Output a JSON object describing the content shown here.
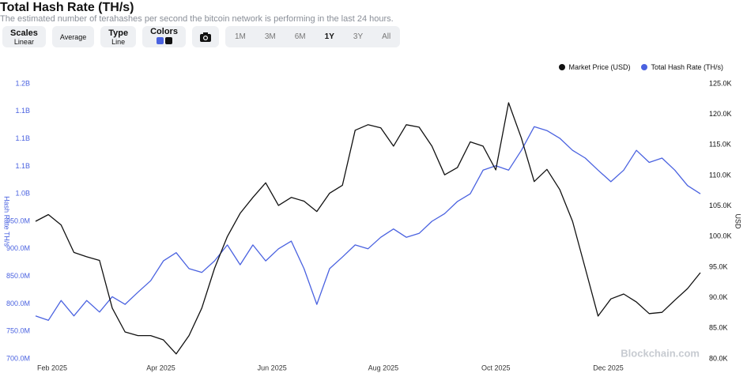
{
  "header": {
    "title": "Total Hash Rate (TH/s)",
    "subtitle": "The estimated number of terahashes per second the bitcoin network is performing in the last 24 hours."
  },
  "controls": {
    "scales_label": "Scales",
    "scales_value": "Linear",
    "average": "Average",
    "type_label": "Type",
    "type_value": "Line",
    "colors_label": "Colors",
    "ranges": [
      "1M",
      "3M",
      "6M",
      "1Y",
      "3Y",
      "All"
    ],
    "active_range": "1Y"
  },
  "watermark": "Blockchain.com",
  "chart_data": {
    "type": "line",
    "ylabel": "Hash Rate TH/s",
    "y2label": "USD",
    "xlim": [
      0,
      52
    ],
    "xticks": [
      {
        "value": 1.3,
        "label": "Feb 2025"
      },
      {
        "value": 9.8,
        "label": "Apr 2025"
      },
      {
        "value": 18.5,
        "label": "Jun 2025"
      },
      {
        "value": 27.2,
        "label": "Aug 2025"
      },
      {
        "value": 36,
        "label": "Oct 2025"
      },
      {
        "value": 44.8,
        "label": "Dec 2025"
      }
    ],
    "ylim": [
      700000000,
      1200000000
    ],
    "yticks": [
      {
        "value": 700000000,
        "label": "700.0M"
      },
      {
        "value": 750000000,
        "label": "750.0M"
      },
      {
        "value": 800000000,
        "label": "800.0M"
      },
      {
        "value": 850000000,
        "label": "850.0M"
      },
      {
        "value": 900000000,
        "label": "900.0M"
      },
      {
        "value": 950000000,
        "label": "950.0M"
      },
      {
        "value": 1000000000,
        "label": "1.0B"
      },
      {
        "value": 1050000000,
        "label": "1.1B"
      },
      {
        "value": 1100000000,
        "label": "1.1B"
      },
      {
        "value": 1150000000,
        "label": "1.1B"
      },
      {
        "value": 1200000000,
        "label": "1.2B"
      }
    ],
    "y2lim": [
      80000,
      125000
    ],
    "y2ticks": [
      {
        "value": 80000,
        "label": "80.0K"
      },
      {
        "value": 85000,
        "label": "85.0K"
      },
      {
        "value": 90000,
        "label": "90.0K"
      },
      {
        "value": 95000,
        "label": "95.0K"
      },
      {
        "value": 100000,
        "label": "100.0K"
      },
      {
        "value": 105000,
        "label": "105.0K"
      },
      {
        "value": 110000,
        "label": "110.0K"
      },
      {
        "value": 115000,
        "label": "115.0K"
      },
      {
        "value": 120000,
        "label": "120.0K"
      },
      {
        "value": 125000,
        "label": "125.0K"
      }
    ],
    "series": [
      {
        "name": "Market Price (USD)",
        "color": "#111111",
        "axis": "y2",
        "values": [
          102500,
          103600,
          101900,
          97400,
          96700,
          96100,
          88300,
          84400,
          83800,
          83800,
          83100,
          80800,
          83800,
          88300,
          94800,
          100000,
          103800,
          106400,
          108800,
          105100,
          106400,
          105800,
          104100,
          107100,
          108400,
          117400,
          118300,
          117800,
          114800,
          118300,
          117900,
          114800,
          110100,
          111300,
          115500,
          114800,
          110900,
          121900,
          116100,
          109000,
          111000,
          107700,
          102500,
          94800,
          87000,
          89800,
          90600,
          89300,
          87400,
          87600,
          89600,
          91500,
          94100
        ]
      },
      {
        "name": "Total Hash Rate (TH/s)",
        "color": "#4a62e0",
        "axis": "y",
        "values": [
          778000000,
          770000000,
          806000000,
          778000000,
          806000000,
          785000000,
          813000000,
          799000000,
          821000000,
          842000000,
          878000000,
          893000000,
          864000000,
          857000000,
          878000000,
          907000000,
          871000000,
          907000000,
          878000000,
          900000000,
          914000000,
          864000000,
          799000000,
          864000000,
          885000000,
          907000000,
          900000000,
          921000000,
          936000000,
          921000000,
          928000000,
          950000000,
          964000000,
          986000000,
          1000000000,
          1043000000,
          1051000000,
          1043000000,
          1079000000,
          1122000000,
          1115000000,
          1101000000,
          1079000000,
          1065000000,
          1043000000,
          1022000000,
          1043000000,
          1079000000,
          1057000000,
          1065000000,
          1043000000,
          1015000000,
          1000000000
        ]
      }
    ]
  }
}
